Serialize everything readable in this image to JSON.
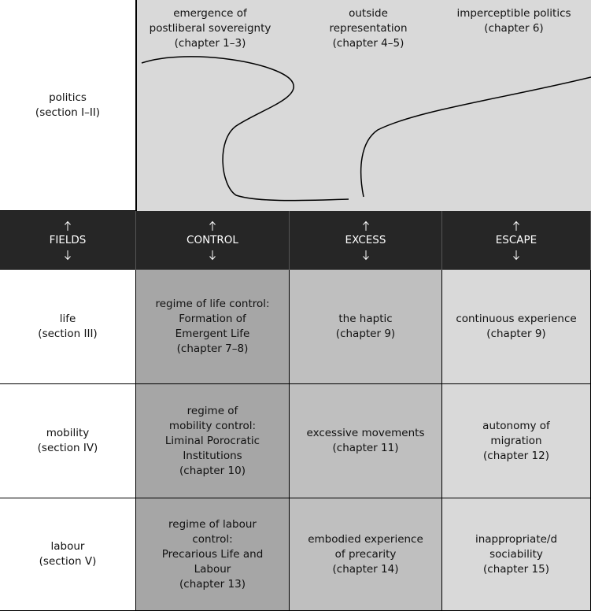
{
  "politics": {
    "label": [
      "politics",
      "(section I–II)"
    ],
    "items": [
      [
        "emergence of",
        "postliberal sovereignty",
        "(chapter 1–3)"
      ],
      [
        "outside",
        "representation",
        "(chapter 4–5)"
      ],
      [
        "imperceptible politics",
        "(chapter 6)"
      ]
    ]
  },
  "header": [
    "FIELDS",
    "CONTROL",
    "EXCESS",
    "ESCAPE"
  ],
  "rows": [
    {
      "field": [
        "life",
        "(section III)"
      ],
      "cells": [
        [
          "regime of life control:",
          "Formation of",
          "Emergent Life",
          "(chapter 7–8)"
        ],
        [
          "the haptic",
          "(chapter 9)"
        ],
        [
          "continuous experience",
          "(chapter 9)"
        ]
      ]
    },
    {
      "field": [
        "mobility",
        "(section IV)"
      ],
      "cells": [
        [
          "regime of",
          "mobility control:",
          "Liminal Porocratic",
          "Institutions",
          "(chapter 10)"
        ],
        [
          "excessive movements",
          "(chapter 11)"
        ],
        [
          "autonomy of",
          "migration",
          "(chapter 12)"
        ]
      ]
    },
    {
      "field": [
        "labour",
        "(section V)"
      ],
      "cells": [
        [
          "regime of labour",
          "control:",
          "Precarious Life and",
          "Labour",
          "(chapter 13)"
        ],
        [
          "embodied experience",
          "of precarity",
          "(chapter 14)"
        ],
        [
          "inappropriate/d",
          "sociability",
          "(chapter 15)"
        ]
      ]
    }
  ]
}
